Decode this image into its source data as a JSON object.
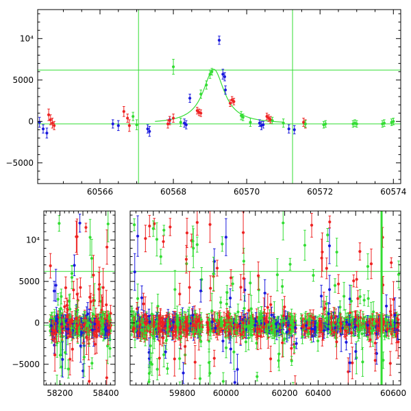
{
  "colors": {
    "green": "#33dd33",
    "red": "#ee2222",
    "blue": "#1a1add",
    "fit": "#33dd33",
    "axis": "#000000"
  },
  "chart_data": [
    {
      "type": "scatter",
      "title": "",
      "xlabel": "",
      "ylabel": "",
      "xlim": [
        60564.3,
        60574.2
      ],
      "ylim": [
        -7500,
        13500
      ],
      "xticks": [
        "60566",
        "60568",
        "60570",
        "60572",
        "60574"
      ],
      "xtick_values": [
        60566,
        60568,
        60570,
        60572,
        60574
      ],
      "yticks": [
        "−5000",
        "0",
        "5000",
        "10⁴"
      ],
      "ytick_values": [
        -5000,
        0,
        5000,
        10000
      ],
      "hlines": [
        -300,
        6200
      ],
      "vlines": [
        60567.05,
        60571.25
      ],
      "fit_curve": {
        "baseline": -300,
        "peak_x": 60569.1,
        "peak_y": 6300,
        "width": 0.35
      },
      "series": [
        {
          "color": "blue",
          "points": [
            [
              60564.35,
              -100,
              600
            ],
            [
              60564.45,
              -900,
              500
            ],
            [
              60564.55,
              -1400,
              600
            ],
            [
              60566.35,
              -300,
              500
            ],
            [
              60566.5,
              -500,
              600
            ],
            [
              60567.3,
              -900,
              500
            ],
            [
              60567.35,
              -1200,
              600
            ],
            [
              60567.9,
              200,
              400
            ],
            [
              60568.3,
              -200,
              500
            ],
            [
              60568.35,
              -400,
              500
            ],
            [
              60568.45,
              2800,
              500
            ],
            [
              60569.25,
              9800,
              500
            ],
            [
              60569.35,
              5700,
              600
            ],
            [
              60569.4,
              5400,
              500
            ],
            [
              60569.42,
              3800,
              500
            ],
            [
              60570.35,
              -200,
              400
            ],
            [
              60570.4,
              -500,
              500
            ],
            [
              60570.45,
              -400,
              400
            ],
            [
              60571.15,
              -900,
              500
            ],
            [
              60571.3,
              -1000,
              500
            ]
          ]
        },
        {
          "color": "red",
          "points": [
            [
              60564.6,
              800,
              700
            ],
            [
              60564.65,
              200,
              600
            ],
            [
              60564.7,
              -200,
              600
            ],
            [
              60564.75,
              -500,
              500
            ],
            [
              60566.65,
              1200,
              600
            ],
            [
              60566.75,
              400,
              500
            ],
            [
              60566.8,
              -500,
              700
            ],
            [
              60567.85,
              -300,
              500
            ],
            [
              60567.9,
              100,
              500
            ],
            [
              60568.0,
              400,
              500
            ],
            [
              60568.65,
              1300,
              400
            ],
            [
              60568.7,
              1100,
              400
            ],
            [
              60568.75,
              1000,
              400
            ],
            [
              60569.55,
              2200,
              400
            ],
            [
              60569.6,
              2600,
              400
            ],
            [
              60569.65,
              2400,
              400
            ],
            [
              60570.55,
              600,
              400
            ],
            [
              60570.6,
              400,
              400
            ],
            [
              60570.65,
              200,
              400
            ],
            [
              60571.55,
              -100,
              500
            ],
            [
              60571.6,
              -300,
              500
            ]
          ]
        },
        {
          "color": "green",
          "points": [
            [
              60566.9,
              600,
              500
            ],
            [
              60567.0,
              -400,
              600
            ],
            [
              60568.0,
              6600,
              900
            ],
            [
              60568.2,
              -100,
              500
            ],
            [
              60568.75,
              3300,
              500
            ],
            [
              60568.9,
              4400,
              500
            ],
            [
              60569.0,
              5700,
              500
            ],
            [
              60569.05,
              6000,
              400
            ],
            [
              60569.85,
              700,
              500
            ],
            [
              60569.9,
              500,
              400
            ],
            [
              60570.1,
              -100,
              500
            ],
            [
              60570.7,
              100,
              400
            ],
            [
              60571.0,
              -200,
              500
            ],
            [
              60571.6,
              -300,
              400
            ],
            [
              60572.1,
              -400,
              400
            ],
            [
              60572.15,
              -300,
              400
            ],
            [
              60572.9,
              -300,
              400
            ],
            [
              60572.95,
              -200,
              400
            ],
            [
              60573.0,
              -300,
              400
            ],
            [
              60573.7,
              -300,
              400
            ],
            [
              60573.75,
              -200,
              400
            ],
            [
              60573.95,
              -100,
              400
            ],
            [
              60574.0,
              0,
              400
            ]
          ]
        }
      ]
    },
    {
      "type": "scatter",
      "title": "",
      "xlabel": "",
      "ylabel": "",
      "ylim": [
        -7500,
        13500
      ],
      "x_segments": [
        [
          58130,
          58440
        ],
        [
          59620,
          59880
        ],
        [
          59930,
          60250
        ],
        [
          60350,
          60620
        ]
      ],
      "xticks": [
        "58200",
        "58400",
        "59800",
        "60000",
        "60200",
        "60400",
        "60600"
      ],
      "xtick_values": [
        58200,
        58400,
        59800,
        60000,
        60200,
        60400,
        60600
      ],
      "yticks": [
        "−5000",
        "0",
        "5000",
        "10⁴"
      ],
      "ytick_values": [
        -5000,
        0,
        5000,
        10000
      ],
      "hlines": [
        -300,
        6200
      ],
      "vlines": [
        60569
      ],
      "seasons": [
        {
          "start": 58155,
          "end": 58425,
          "count": 420
        },
        {
          "start": 59625,
          "end": 59870,
          "count": 420
        },
        {
          "start": 59935,
          "end": 60240,
          "count": 420
        },
        {
          "start": 60355,
          "end": 60615,
          "count": 420
        }
      ]
    }
  ]
}
